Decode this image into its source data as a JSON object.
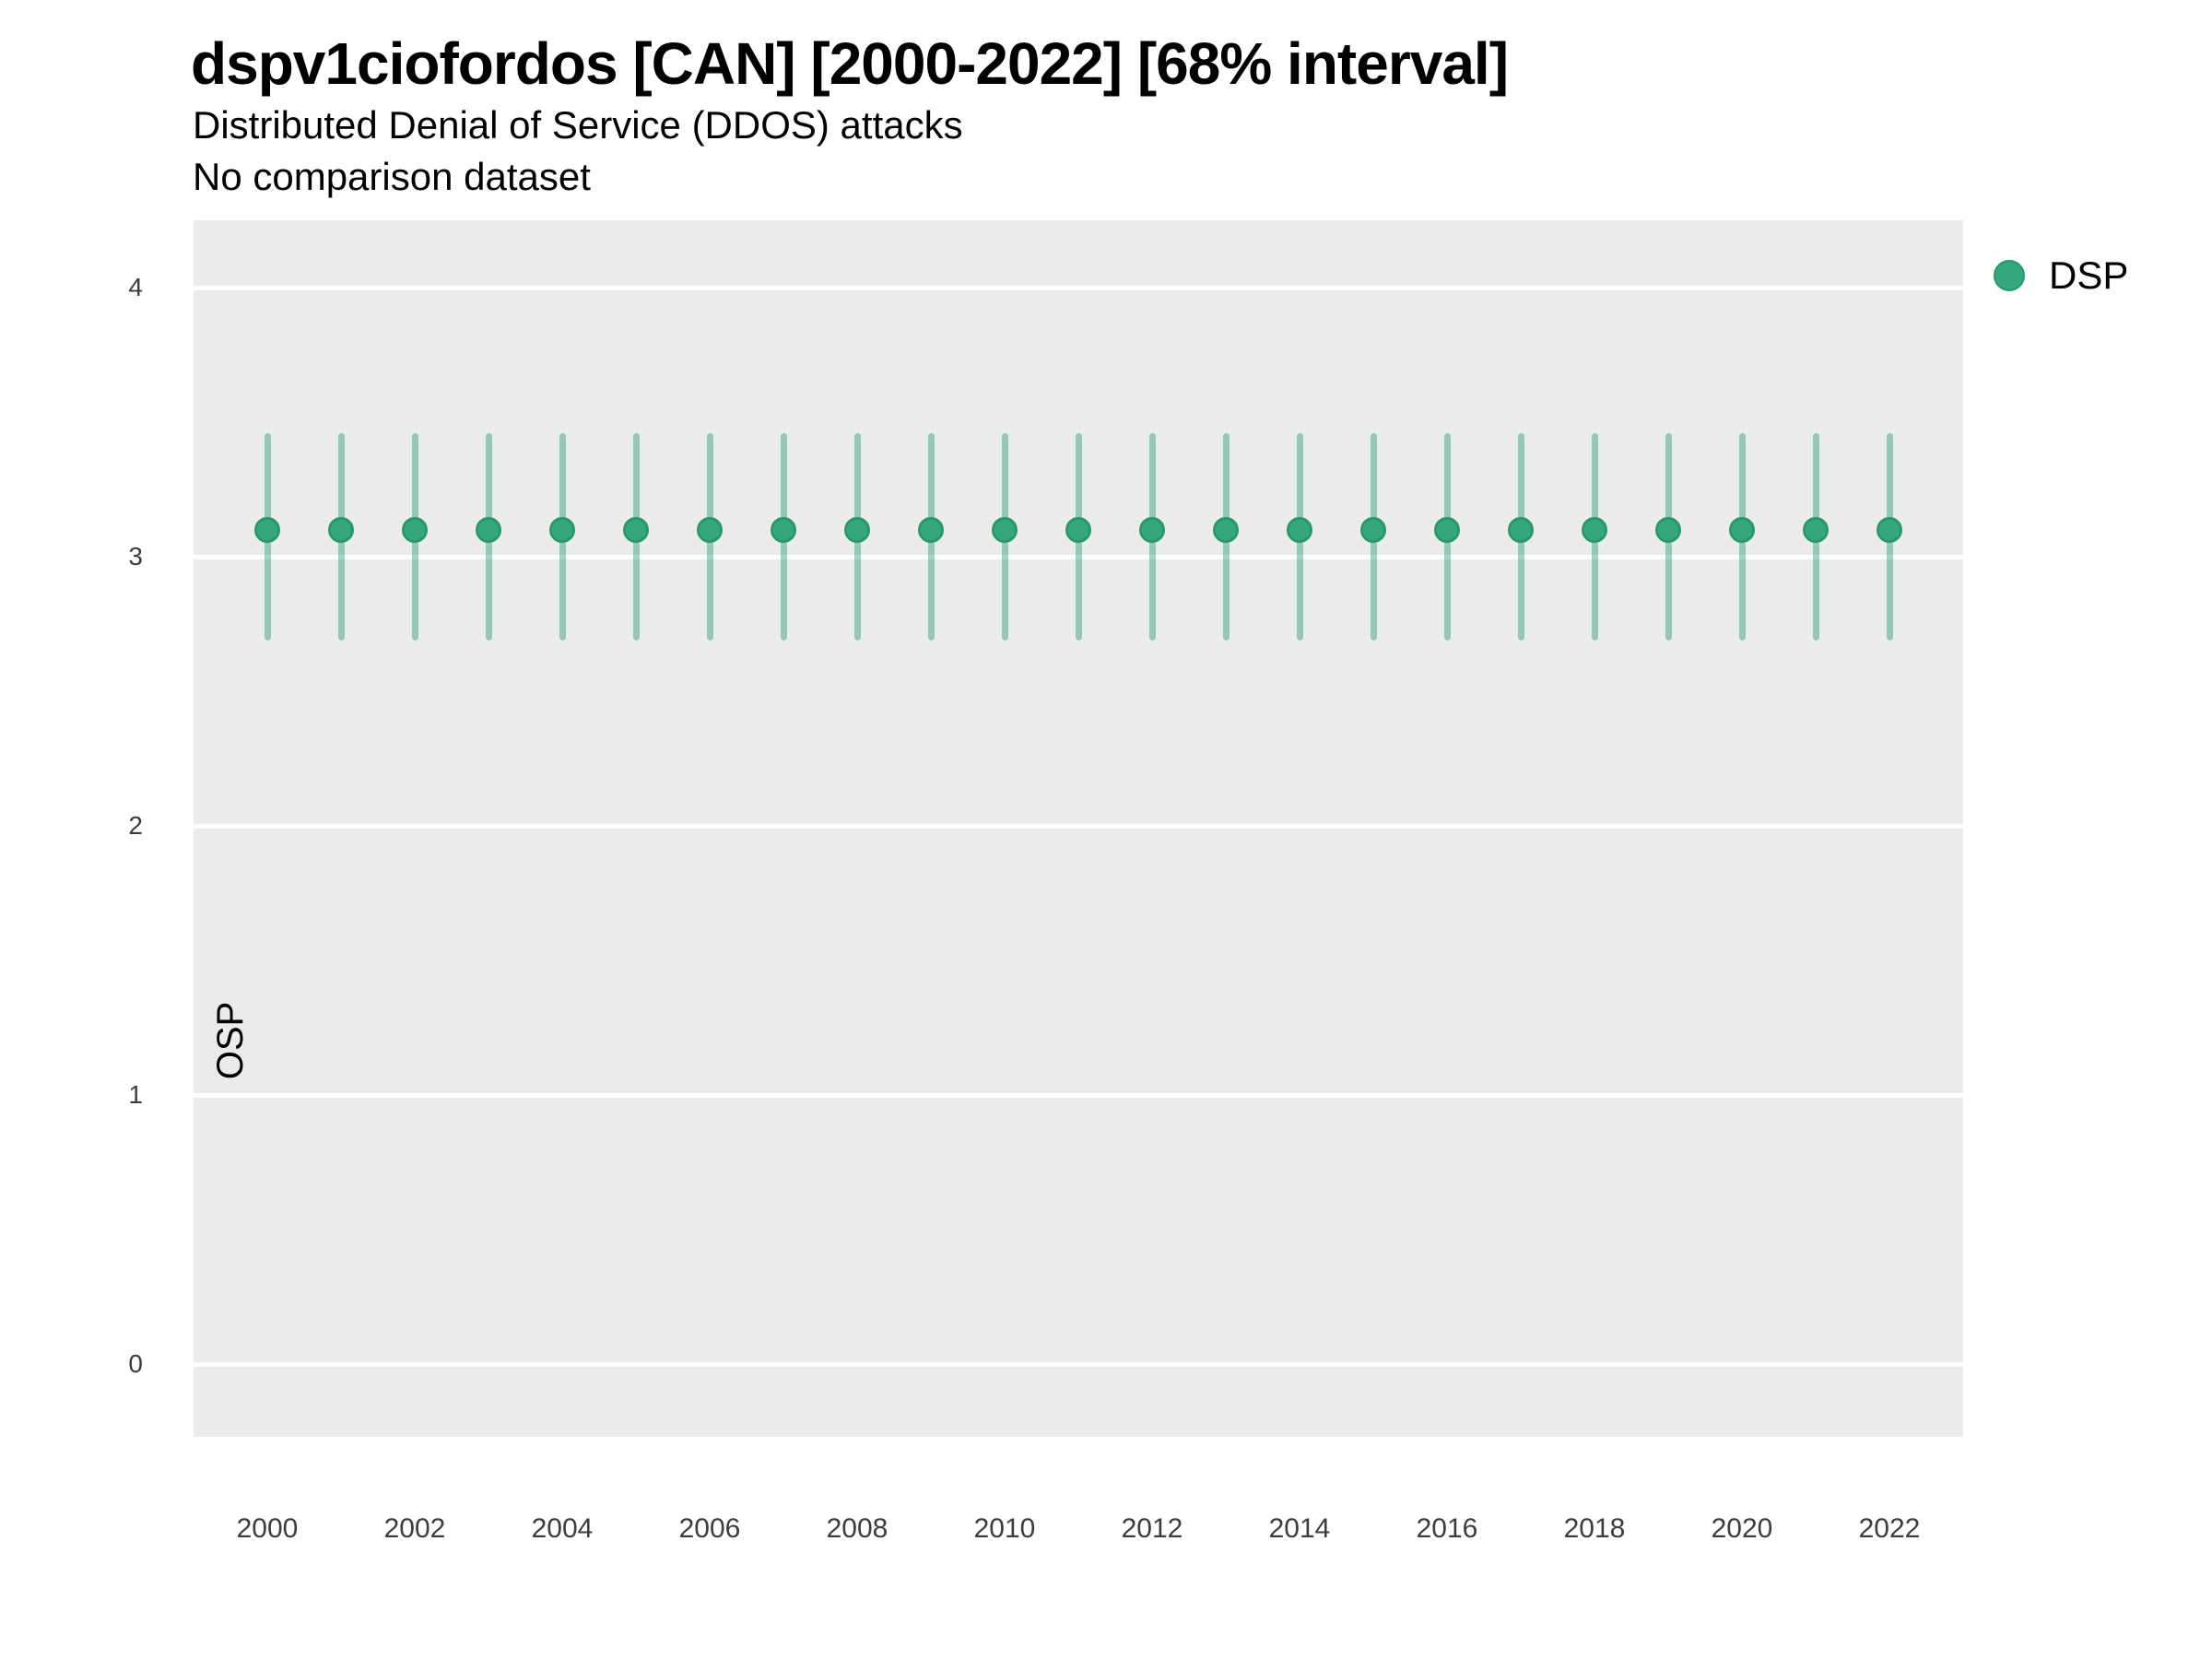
{
  "header": {
    "title": "dspv1ciofordos [CAN] [2000-2022] [68% interval]",
    "subtitle": "Distributed Denial of Service (DDOS) attacks",
    "note": "No comparison dataset"
  },
  "chart_data": {
    "type": "scatter",
    "variant": "pointrange",
    "title": "dspv1ciofordos [CAN] [2000-2022] [68% interval]",
    "subtitle": "Distributed Denial of Service (DDOS) attacks",
    "annotation": "No comparison dataset",
    "interval_label": "68% interval",
    "xlabel": "",
    "ylabel": "OSP",
    "x": [
      2000,
      2001,
      2002,
      2003,
      2004,
      2005,
      2006,
      2007,
      2008,
      2009,
      2010,
      2011,
      2012,
      2013,
      2014,
      2015,
      2016,
      2017,
      2018,
      2019,
      2020,
      2021,
      2022
    ],
    "series": [
      {
        "name": "DSP",
        "values": [
          3.1,
          3.1,
          3.1,
          3.1,
          3.1,
          3.1,
          3.1,
          3.1,
          3.1,
          3.1,
          3.1,
          3.1,
          3.1,
          3.1,
          3.1,
          3.1,
          3.1,
          3.1,
          3.1,
          3.1,
          3.1,
          3.1,
          3.1
        ],
        "interval_low": [
          2.69,
          2.69,
          2.69,
          2.69,
          2.69,
          2.69,
          2.69,
          2.69,
          2.69,
          2.69,
          2.69,
          2.69,
          2.69,
          2.69,
          2.69,
          2.69,
          2.69,
          2.69,
          2.69,
          2.69,
          2.69,
          2.69,
          2.69
        ],
        "interval_high": [
          3.46,
          3.46,
          3.46,
          3.46,
          3.46,
          3.46,
          3.46,
          3.46,
          3.46,
          3.46,
          3.46,
          3.46,
          3.46,
          3.46,
          3.46,
          3.46,
          3.46,
          3.46,
          3.46,
          3.46,
          3.46,
          3.46,
          3.46
        ]
      }
    ],
    "xlim": [
      1999,
      23
    ],
    "xlim_end": 2023,
    "ylim": [
      -0.27,
      4.25
    ],
    "yticks": [
      0,
      1,
      2,
      3,
      4
    ],
    "xticks": [
      2000,
      2002,
      2004,
      2006,
      2008,
      2010,
      2012,
      2014,
      2016,
      2018,
      2020,
      2022
    ],
    "grid": "horizontal-major-only",
    "legend_position": "right",
    "legend": {
      "label": "DSP"
    },
    "colors": {
      "point": "#34a87b",
      "point_border": "#27986a",
      "interval": "rgba(47,161,115,0.46)",
      "panel_bg": "#ebebeb",
      "gridline": "#ffffff",
      "title_text": "#000000",
      "tick_text": "#3d3d3d"
    }
  }
}
